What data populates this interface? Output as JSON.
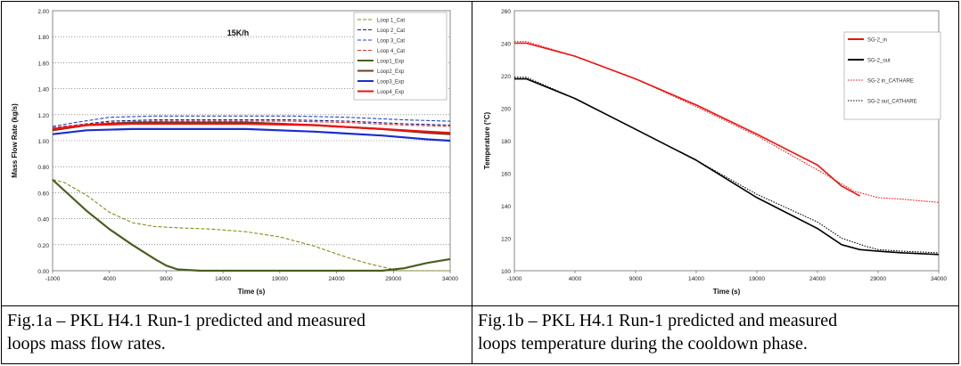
{
  "captions": {
    "left_line1": "Fig.1a – PKL H4.1 Run-1 predicted and measured",
    "left_line2": "loops mass flow rates.",
    "right_line1": "Fig.1b – PKL H4.1 Run-1 predicted and measured",
    "right_line2": "loops temperature during the cooldown phase."
  },
  "chart_data": [
    {
      "type": "line",
      "title": "15K/h",
      "xlabel": "Time (s)",
      "ylabel": "Mass Flow Rate (kg/s)",
      "xlim": [
        -1000,
        34000
      ],
      "ylim": [
        0,
        2.0
      ],
      "xticks": [
        "-1000",
        "4000",
        "9000",
        "14000",
        "19000",
        "24000",
        "29000",
        "34000"
      ],
      "yticks": [
        "0.00",
        "0.20",
        "0.40",
        "0.60",
        "0.80",
        "1.00",
        "1.20",
        "1.40",
        "1.60",
        "1.80",
        "2.00"
      ],
      "grid": true,
      "legend_position": "top-right",
      "series": [
        {
          "name": "Loop 1_Cat",
          "color": "#8a8a1a",
          "style": "dashed",
          "x": [
            -1000,
            0,
            2000,
            4000,
            6000,
            8000,
            10000,
            13000,
            16000,
            19000,
            22000,
            25000,
            27000,
            28500,
            29500,
            31000,
            34000
          ],
          "y": [
            0.7,
            0.68,
            0.58,
            0.45,
            0.37,
            0.34,
            0.33,
            0.32,
            0.3,
            0.26,
            0.19,
            0.1,
            0.05,
            0.02,
            0.0,
            0.0,
            0.0
          ]
        },
        {
          "name": "Loop 2_Cat",
          "color": "#1a1a80",
          "style": "dashed",
          "x": [
            -1000,
            1000,
            4000,
            8000,
            14000,
            20000,
            25000,
            30000,
            34000
          ],
          "y": [
            1.1,
            1.12,
            1.15,
            1.16,
            1.16,
            1.16,
            1.15,
            1.13,
            1.12
          ]
        },
        {
          "name": "Loop 3_Cat",
          "color": "#2244cc",
          "style": "dashed",
          "x": [
            -1000,
            1000,
            4000,
            8000,
            14000,
            20000,
            25000,
            30000,
            34000
          ],
          "y": [
            1.11,
            1.14,
            1.18,
            1.19,
            1.19,
            1.19,
            1.18,
            1.16,
            1.15
          ]
        },
        {
          "name": "Loop 4_Cat",
          "color": "#dd3333",
          "style": "dashed",
          "x": [
            -1000,
            1000,
            4000,
            8000,
            14000,
            20000,
            25000,
            30000,
            34000
          ],
          "y": [
            1.1,
            1.12,
            1.14,
            1.15,
            1.15,
            1.15,
            1.14,
            1.12,
            1.11
          ]
        },
        {
          "name": "Loop1_Exp",
          "color": "#4b5e20",
          "style": "solid",
          "x": [
            -1000,
            0,
            2000,
            4000,
            6000,
            8000,
            9000,
            10000,
            12000,
            14000,
            20000,
            28000,
            30000,
            32000,
            34000
          ],
          "y": [
            0.7,
            0.62,
            0.46,
            0.32,
            0.2,
            0.09,
            0.04,
            0.01,
            0.0,
            0.0,
            0.0,
            0.0,
            0.02,
            0.06,
            0.09
          ]
        },
        {
          "name": "Loop2_Exp",
          "color": "#6b3f1f",
          "style": "solid",
          "x": [
            -1000,
            2000,
            6000,
            10000,
            16000,
            22000,
            28000,
            32000,
            34000
          ],
          "y": [
            1.08,
            1.12,
            1.14,
            1.14,
            1.14,
            1.12,
            1.09,
            1.06,
            1.05
          ]
        },
        {
          "name": "Loop3_Exp",
          "color": "#1a2fcc",
          "style": "solid",
          "x": [
            -1000,
            2000,
            6000,
            10000,
            16000,
            22000,
            28000,
            32000,
            34000
          ],
          "y": [
            1.05,
            1.08,
            1.09,
            1.09,
            1.09,
            1.07,
            1.04,
            1.01,
            1.0
          ]
        },
        {
          "name": "Loop4_Exp",
          "color": "#ee1111",
          "style": "solid",
          "x": [
            -1000,
            2000,
            6000,
            10000,
            16000,
            22000,
            28000,
            32000,
            34000
          ],
          "y": [
            1.09,
            1.12,
            1.13,
            1.13,
            1.13,
            1.12,
            1.09,
            1.07,
            1.06
          ]
        }
      ]
    },
    {
      "type": "line",
      "title": "",
      "xlabel": "Time (s)",
      "ylabel": "Temperature (°C)",
      "xlim": [
        -1000,
        34000
      ],
      "ylim": [
        100,
        260
      ],
      "xticks": [
        "-1000",
        "4000",
        "9000",
        "14000",
        "19000",
        "24000",
        "29000",
        "34000"
      ],
      "yticks": [
        "100",
        "120",
        "140",
        "160",
        "180",
        "200",
        "220",
        "240",
        "260"
      ],
      "grid": false,
      "legend_position": "top-right",
      "series": [
        {
          "name": "SG-2_in",
          "color": "#ee1111",
          "style": "solid",
          "x": [
            -1000,
            0,
            4000,
            9000,
            14000,
            19000,
            24000,
            26000,
            27500
          ],
          "y": [
            240,
            240,
            232,
            218,
            202,
            184,
            165,
            152,
            146
          ]
        },
        {
          "name": "SG-2_out",
          "color": "#000000",
          "style": "solid",
          "x": [
            -1000,
            0,
            4000,
            9000,
            14000,
            19000,
            24000,
            26000,
            27500,
            29000,
            31000,
            34000
          ],
          "y": [
            218,
            218,
            206,
            187,
            168,
            145,
            126,
            116,
            113,
            112,
            111,
            110
          ]
        },
        {
          "name": "SG-2 in_CATHARE",
          "color": "#ee1111",
          "style": "dotted",
          "x": [
            -1000,
            0,
            4000,
            9000,
            14000,
            19000,
            24000,
            27000,
            29000,
            31000,
            34000
          ],
          "y": [
            241,
            241,
            232,
            218,
            201,
            183,
            162,
            149,
            145,
            144,
            142
          ]
        },
        {
          "name": "SG-2 out_CATHARE",
          "color": "#000000",
          "style": "dotted",
          "x": [
            -1000,
            0,
            4000,
            9000,
            14000,
            19000,
            24000,
            26000,
            28000,
            29000,
            31000,
            34000
          ],
          "y": [
            219,
            219,
            206,
            187,
            168,
            147,
            130,
            120,
            115,
            113,
            112,
            111
          ]
        }
      ]
    }
  ]
}
